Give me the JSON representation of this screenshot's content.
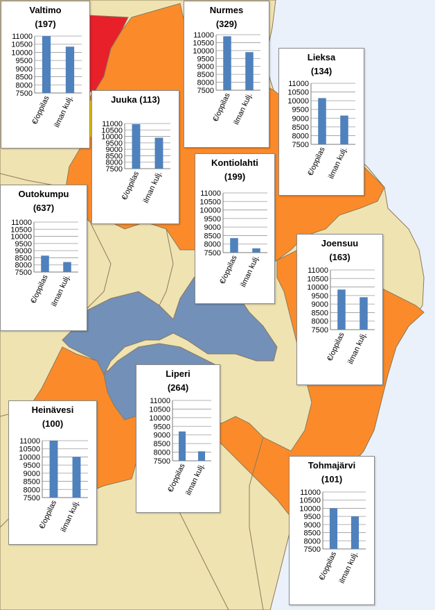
{
  "colors": {
    "sea": "#eaf1fb",
    "land": "#f0e3b2",
    "orange": "#fb8b2a",
    "blue": "#7290b8",
    "red": "#e8202a",
    "yellow": "#ffd700",
    "bar": "#4f81bd",
    "border": "#8a7a5a"
  },
  "chart_data": [
    {
      "type": "bar",
      "title": "Valtimo",
      "count": "(197)",
      "categories": [
        "€/oppilas",
        "ilman kulj."
      ],
      "values": [
        11000,
        10350
      ],
      "ylim": [
        7500,
        11000
      ],
      "yticks": [
        "11000",
        "10500",
        "10000",
        "9500",
        "9000",
        "8500",
        "8000",
        "7500"
      ],
      "tick_step": 500,
      "grid": true
    },
    {
      "type": "bar",
      "title": "Nurmes",
      "count": "(329)",
      "categories": [
        "€/oppilas",
        "ilman kulj."
      ],
      "values": [
        10900,
        9900
      ],
      "ylim": [
        7500,
        11000
      ],
      "yticks": [
        "11000",
        "10500",
        "10000",
        "9500",
        "9000",
        "8500",
        "8000",
        "7500"
      ],
      "tick_step": 500,
      "grid": true
    },
    {
      "type": "bar",
      "title": "Lieksa",
      "count": "(134)",
      "categories": [
        "€/oppilas",
        "ilman kulj."
      ],
      "values": [
        10150,
        9150
      ],
      "ylim": [
        7500,
        11000
      ],
      "yticks": [
        "11000",
        "10500",
        "10000",
        "9500",
        "9000",
        "8500",
        "8000",
        "7500"
      ],
      "tick_step": 500,
      "grid": true
    },
    {
      "type": "bar",
      "title": "Juuka (113)",
      "count": "",
      "categories": [
        "€/oppilas",
        "ilman kulj."
      ],
      "values": [
        10950,
        9900
      ],
      "ylim": [
        7500,
        11000
      ],
      "yticks": [
        "11000",
        "10500",
        "10000",
        "9500",
        "9000",
        "8500",
        "8000",
        "7500"
      ],
      "tick_step": 500,
      "grid": true
    },
    {
      "type": "bar",
      "title": "Kontiolahti",
      "count": "(199)",
      "categories": [
        "€/oppilas",
        "ilman kulj."
      ],
      "values": [
        8350,
        7750
      ],
      "ylim": [
        7500,
        11000
      ],
      "yticks": [
        "11000",
        "10500",
        "10000",
        "9500",
        "9000",
        "8500",
        "8000",
        "7500"
      ],
      "tick_step": 500,
      "grid": true
    },
    {
      "type": "bar",
      "title": "Outokumpu",
      "count": "(637)",
      "categories": [
        "€/oppilas",
        "ilman kulj."
      ],
      "values": [
        8650,
        8200
      ],
      "ylim": [
        7500,
        11000
      ],
      "yticks": [
        "11000",
        "10500",
        "10000",
        "9500",
        "9000",
        "8500",
        "8000",
        "7500"
      ],
      "tick_step": 500,
      "grid": true
    },
    {
      "type": "bar",
      "title": "Joensuu",
      "count": "(163)",
      "categories": [
        "€/oppilas",
        "ilman kulj."
      ],
      "values": [
        9850,
        9400
      ],
      "ylim": [
        7500,
        11000
      ],
      "yticks": [
        "11000",
        "10500",
        "10000",
        "9500",
        "9000",
        "8500",
        "8000",
        "7500"
      ],
      "tick_step": 500,
      "grid": true
    },
    {
      "type": "bar",
      "title": "Heinävesi",
      "count": "(100)",
      "categories": [
        "€/oppilas",
        "ilman kulj."
      ],
      "values": [
        11000,
        10000
      ],
      "ylim": [
        7500,
        11000
      ],
      "yticks": [
        "11000",
        "10500",
        "10000",
        "9500",
        "9000",
        "8500",
        "8000",
        "7500"
      ],
      "tick_step": 500,
      "grid": true
    },
    {
      "type": "bar",
      "title": "Liperi",
      "count": "(264)",
      "categories": [
        "€/oppilas",
        "ilman kulj."
      ],
      "values": [
        9200,
        8050
      ],
      "ylim": [
        7500,
        11000
      ],
      "yticks": [
        "11000",
        "10500",
        "10000",
        "9500",
        "9000",
        "8500",
        "8000",
        "7500"
      ],
      "tick_step": 500,
      "grid": true
    },
    {
      "type": "bar",
      "title": "Tohmajärvi",
      "count": "(101)",
      "categories": [
        "€/oppilas",
        "ilman kulj."
      ],
      "values": [
        10000,
        9500
      ],
      "ylim": [
        7500,
        11000
      ],
      "yticks": [
        "11000",
        "10500",
        "10000",
        "9500",
        "9000",
        "8500",
        "8000",
        "7500"
      ],
      "tick_step": 500,
      "grid": true
    }
  ]
}
